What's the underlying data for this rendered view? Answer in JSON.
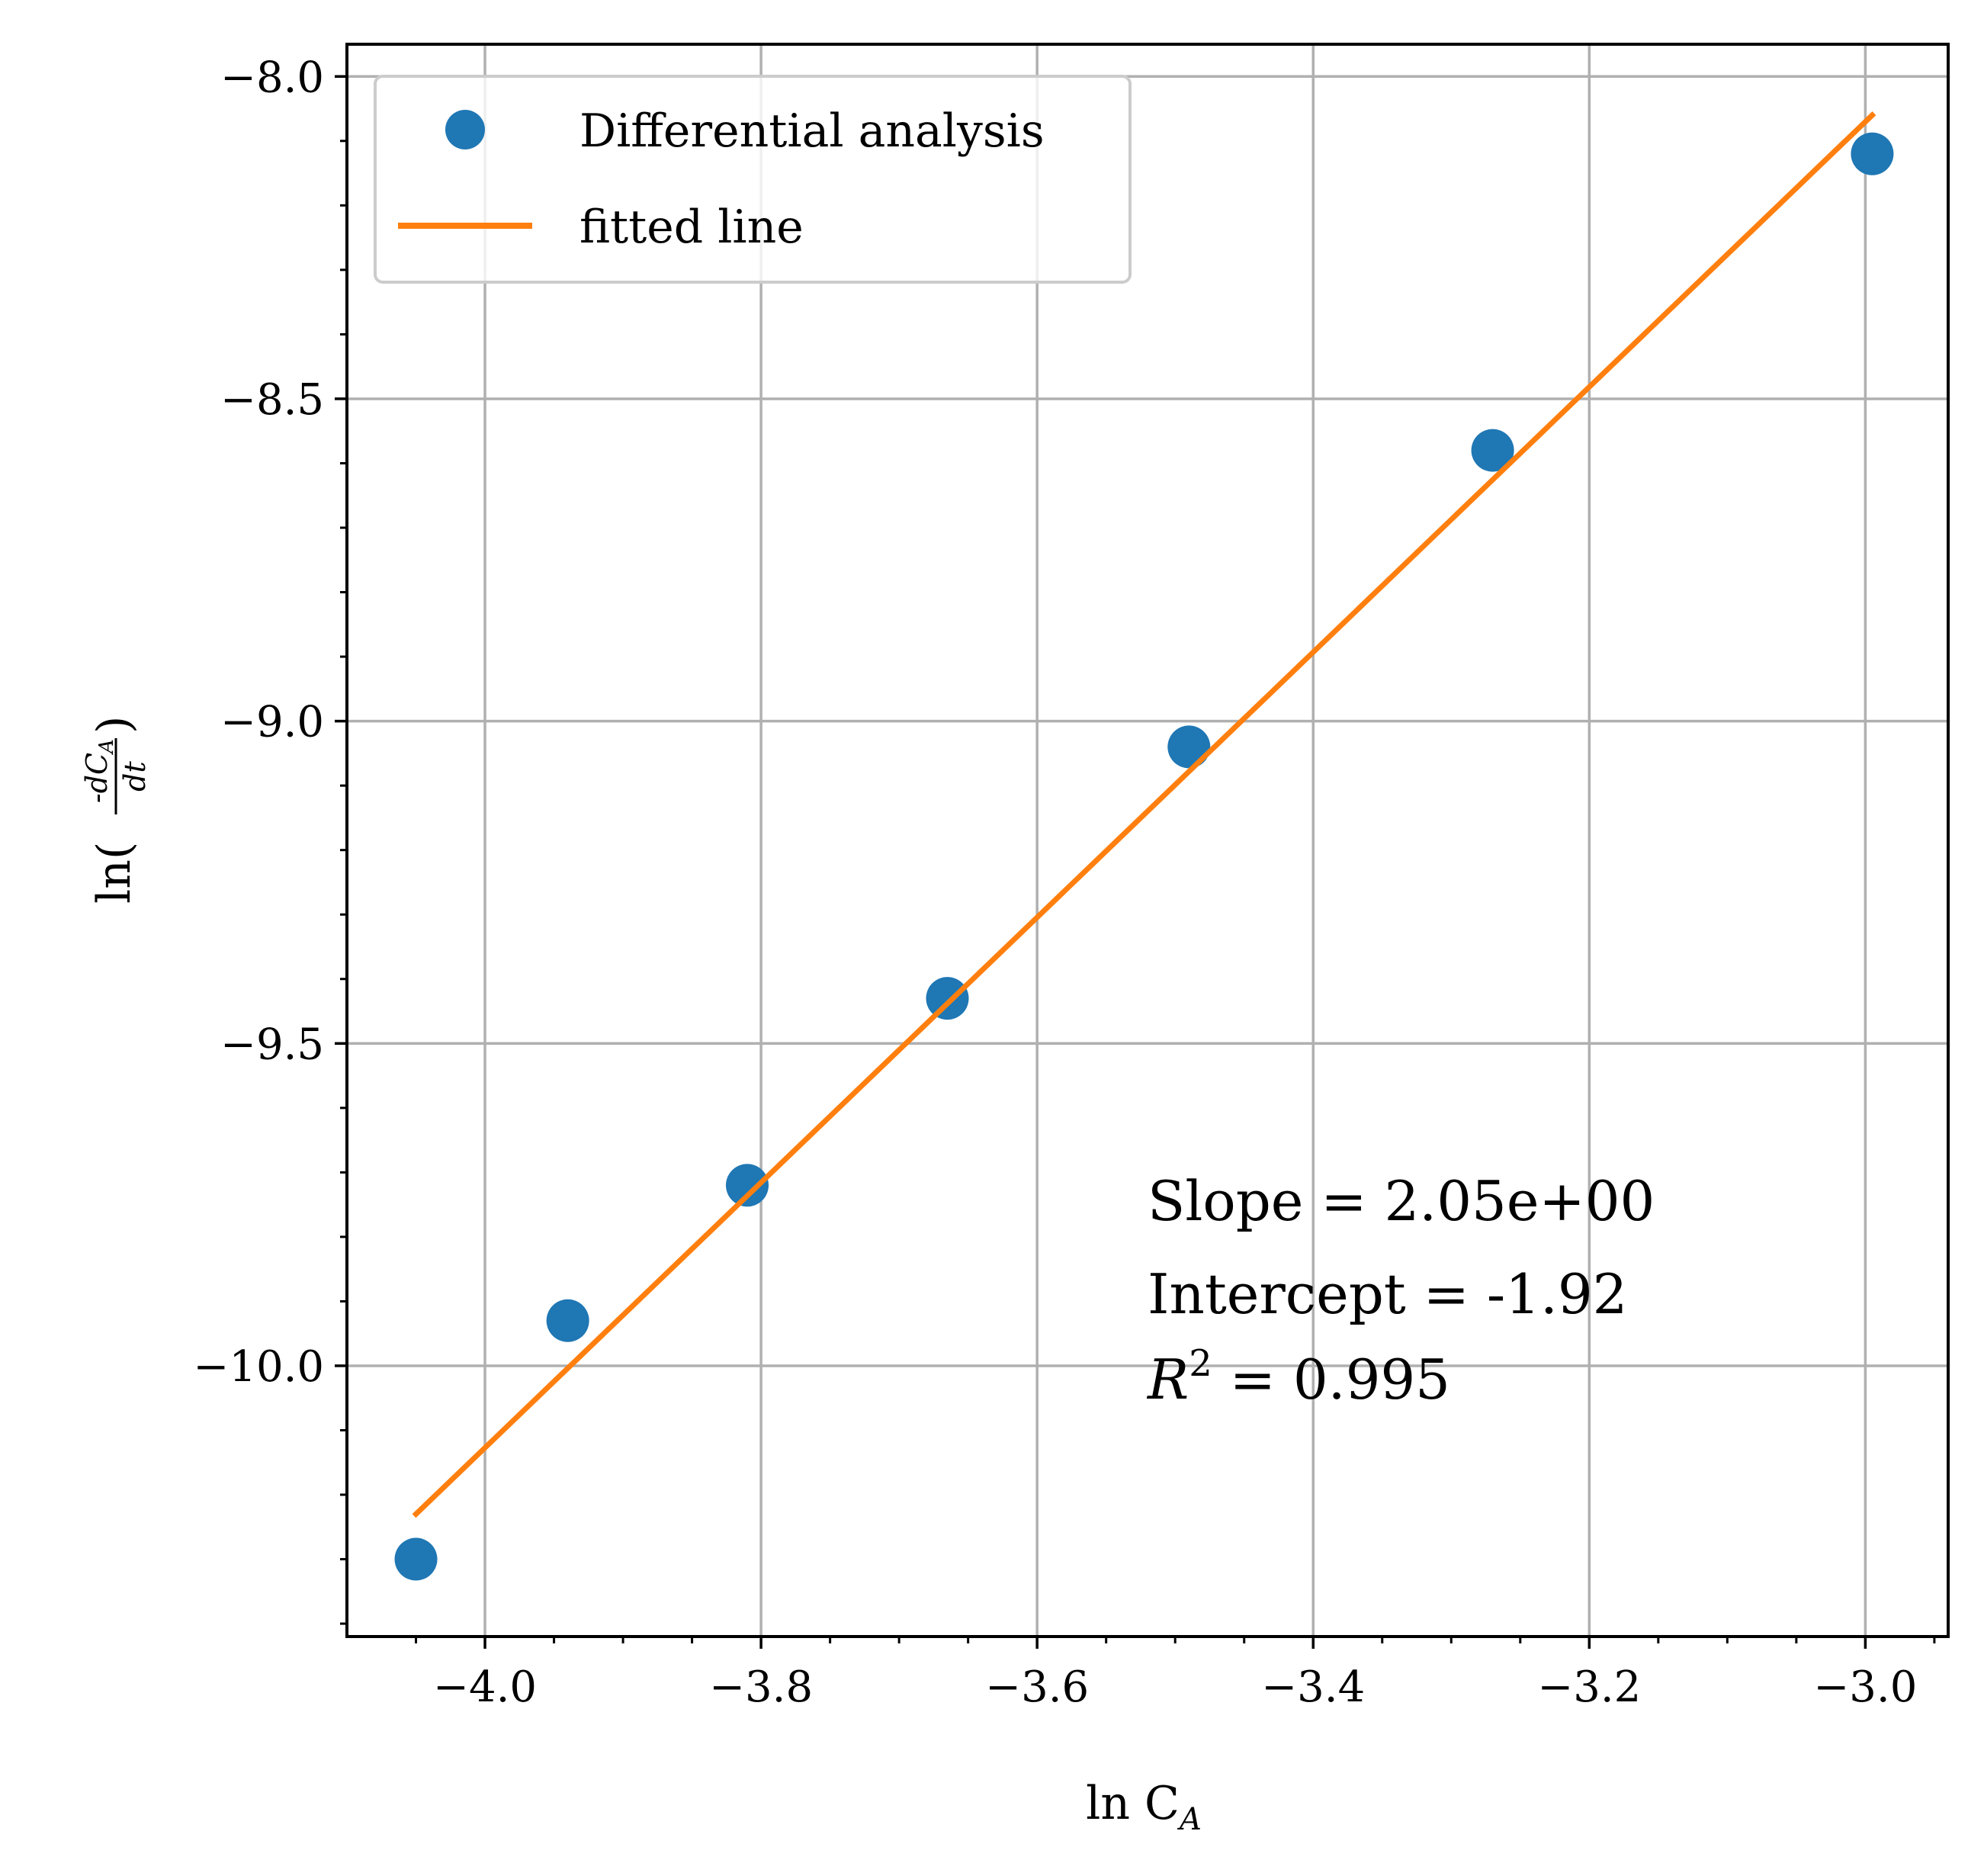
{
  "chart_data": {
    "type": "scatter",
    "xlabel": "ln C",
    "xlabel_sub": "A",
    "ylabel_prefix": "ln(",
    "ylabel_num": "-dC",
    "ylabel_num_sub": "A",
    "ylabel_den": "dt",
    "ylabel_suffix": ")",
    "xlim": [
      -4.1,
      -2.94
    ],
    "ylim": [
      -10.42,
      -7.95
    ],
    "xticks": [
      -4.0,
      -3.8,
      -3.6,
      -3.4,
      -3.2,
      -3.0
    ],
    "xtick_labels": [
      "−4.0",
      "−3.8",
      "−3.6",
      "−3.4",
      "−3.2",
      "−3.0"
    ],
    "yticks": [
      -10.0,
      -9.5,
      -9.0,
      -8.5,
      -8.0
    ],
    "ytick_labels": [
      "−10.0",
      "−9.5",
      "−9.0",
      "−8.5",
      "−8.0"
    ],
    "grid": true,
    "legend_position": "upper-left",
    "series": [
      {
        "name": "Differential analysis",
        "kind": "scatter",
        "color": "#1f77b4",
        "x": [
          -4.05,
          -3.94,
          -3.81,
          -3.665,
          -3.49,
          -3.27,
          -2.995
        ],
        "y": [
          -10.3,
          -9.93,
          -9.72,
          -9.43,
          -9.04,
          -8.58,
          -8.12
        ]
      },
      {
        "name": "fitted line",
        "kind": "line",
        "color": "#ff7f0e",
        "x": [
          -4.05,
          -2.995
        ],
        "y": [
          -10.23,
          -8.06
        ]
      }
    ],
    "annotation": {
      "slope_text": "Slope = 2.05e+00",
      "intercept_text": "Intercept = -1.92",
      "r2_label": "R",
      "r2_sup": "2",
      "r2_value": " = 0.995"
    }
  }
}
